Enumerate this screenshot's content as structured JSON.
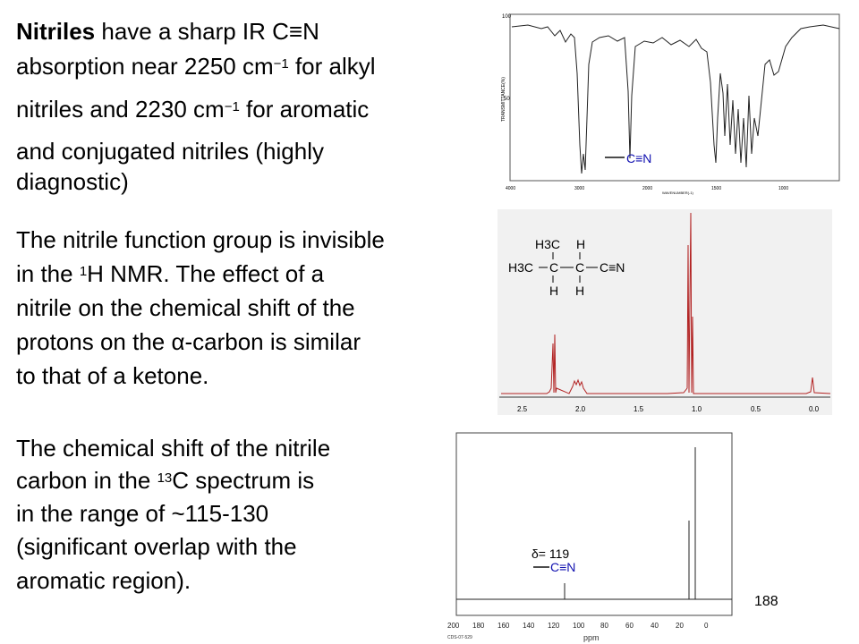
{
  "paragraphs": {
    "p1": {
      "bold_lead": "Nitriles",
      "line1_rest": " have a sharp IR C≡N",
      "line2_a": "absorption near 2250 cm",
      "line2_sup": "−1",
      "line2_b": " for alkyl",
      "line3_a": "nitriles and 2230 cm",
      "line3_sup": "−1",
      "line3_b": " for aromatic",
      "line4": "and conjugated nitriles (highly",
      "line5": "diagnostic)"
    },
    "p2": {
      "line1": "The nitrile function group is invisible",
      "line2_a": "in the ",
      "line2_sup": "1",
      "line2_b": "H NMR. The effect of a",
      "line3": "nitrile on the chemical shift of the",
      "line4": "protons on the α-carbon is similar",
      "line5": "to that of a ketone."
    },
    "p3": {
      "line1": "The chemical shift of the nitrile",
      "line2_a": "carbon in the ",
      "line2_sup": "13",
      "line2_b": "C spectrum is",
      "line3": "in the range of ~115-130",
      "line4": "(significant overlap with the",
      "line5": "aromatic region)."
    }
  },
  "ir_spectrum": {
    "y_tick_top": "100",
    "y_tick_mid": "50",
    "y_label": "TRANSMITTANCE(%)",
    "x_ticks": [
      "4000",
      "3000",
      "2000",
      "1500",
      "1000"
    ],
    "x_label": "WAVENUMBER(-1)",
    "annotation": "C≡N"
  },
  "h_nmr": {
    "structure": {
      "top_left": "H3C",
      "top_right": "H",
      "main_left": "H3C",
      "c1": "C",
      "c2": "C",
      "nitrile": "C≡N",
      "bottom_left": "H",
      "bottom_right": "H"
    },
    "x_ticks": [
      "2.5",
      "2.0",
      "1.5",
      "1.0",
      "0.5",
      "0.0"
    ]
  },
  "c_nmr": {
    "x_ticks": [
      "200",
      "180",
      "160",
      "140",
      "120",
      "100",
      "80",
      "60",
      "40",
      "20",
      "0"
    ],
    "x_label": "ppm",
    "code": "CDS-07-529",
    "shift_label": "δ= 119",
    "annotation": "C≡N"
  },
  "page_number": "188",
  "colors": {
    "nmr_trace": "#b22222",
    "annotation_blue": "#1010b0"
  }
}
